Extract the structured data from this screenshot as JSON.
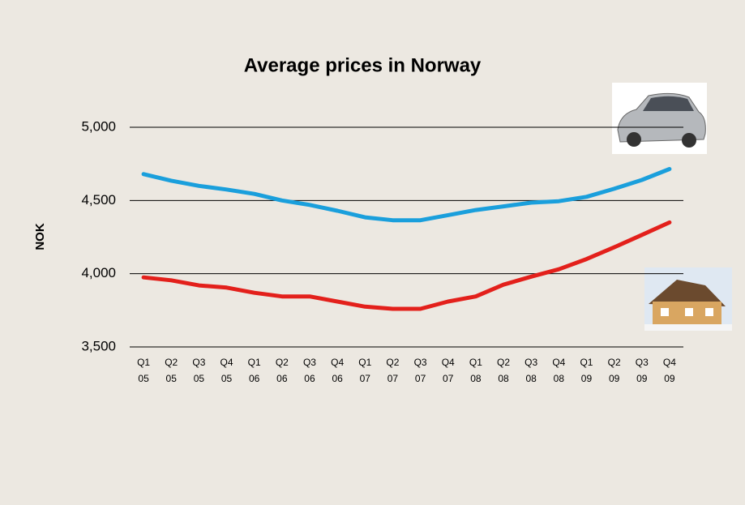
{
  "chart_data": {
    "type": "line",
    "title": "Average prices in Norway",
    "y_label": "NOK",
    "categories": [
      "Q1 05",
      "Q2 05",
      "Q3 05",
      "Q4 05",
      "Q1 06",
      "Q2 06",
      "Q3 06",
      "Q4 06",
      "Q1 07",
      "Q2 07",
      "Q3 07",
      "Q4 07",
      "Q1 08",
      "Q2 08",
      "Q3 08",
      "Q4 08",
      "Q1 09",
      "Q2 09",
      "Q3 09",
      "Q4 09"
    ],
    "series": [
      {
        "color": "#1a9fdc",
        "values": [
          4680,
          4635,
          4600,
          4575,
          4545,
          4500,
          4470,
          4430,
          4385,
          4365,
          4365,
          4400,
          4435,
          4460,
          4485,
          4495,
          4525,
          4580,
          4640,
          4715
        ]
      },
      {
        "color": "#e3201b",
        "values": [
          3975,
          3955,
          3920,
          3905,
          3870,
          3845,
          3845,
          3810,
          3775,
          3760,
          3760,
          3810,
          3845,
          3925,
          3980,
          4030,
          4100,
          4180,
          4265,
          4350
        ]
      }
    ],
    "ylim": [
      3500,
      5000
    ],
    "yticks": [
      {
        "value": 3500,
        "label": "3,500"
      },
      {
        "value": 4000,
        "label": "4,000"
      },
      {
        "value": 4500,
        "label": "4,500"
      },
      {
        "value": 5000,
        "label": "5,000"
      }
    ],
    "grid": true
  }
}
